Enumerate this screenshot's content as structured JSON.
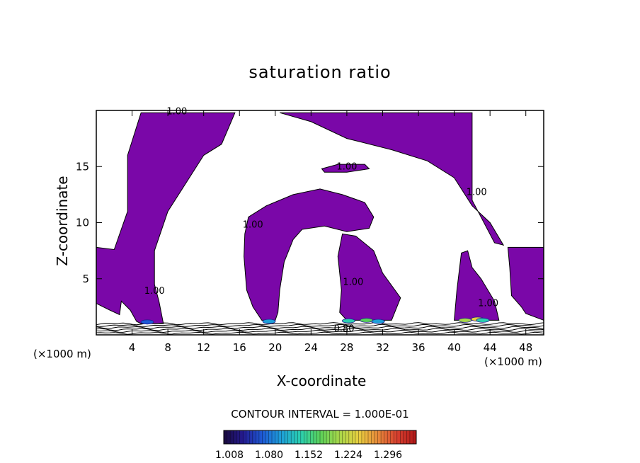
{
  "chart_data": {
    "type": "heatmap",
    "title": "saturation ratio",
    "xlabel": "X-coordinate",
    "ylabel": "Z-coordinate",
    "x_unit_left": "(×1000 m)",
    "x_unit_right": "(×1000 m)",
    "xlim": [
      0,
      50
    ],
    "ylim": [
      0,
      20
    ],
    "x_ticks": [
      4,
      8,
      12,
      16,
      20,
      24,
      28,
      32,
      36,
      40,
      44,
      48
    ],
    "y_ticks": [
      5,
      10,
      15
    ],
    "contour_interval_text": "CONTOUR INTERVAL = 1.000E-01",
    "contour_labels": [
      {
        "text": "1.00",
        "x": 9.0,
        "y": 19.9
      },
      {
        "text": "1.00",
        "x": 28.0,
        "y": 15.0
      },
      {
        "text": "1.00",
        "x": 42.5,
        "y": 12.7
      },
      {
        "text": "1.00",
        "x": 17.5,
        "y": 9.8
      },
      {
        "text": "1.00",
        "x": 28.7,
        "y": 4.7
      },
      {
        "text": "1.00",
        "x": 6.5,
        "y": 3.9
      },
      {
        "text": "1.00",
        "x": 43.8,
        "y": 2.8
      },
      {
        "text": "0.80",
        "x": 27.7,
        "y": 0.55
      }
    ],
    "regions": [
      {
        "name": "left-upper",
        "points": [
          [
            0,
            7.8
          ],
          [
            2,
            7.6
          ],
          [
            3.5,
            11
          ],
          [
            3.5,
            16
          ],
          [
            5,
            19.8
          ],
          [
            15.5,
            19.8
          ],
          [
            14,
            17
          ],
          [
            12,
            16
          ],
          [
            10,
            13.5
          ],
          [
            8,
            11
          ],
          [
            6.5,
            7.5
          ],
          [
            6.5,
            4.5
          ],
          [
            7,
            3
          ],
          [
            7.5,
            1.0
          ],
          [
            5,
            1.0
          ],
          [
            4.5,
            1.2
          ],
          [
            3.8,
            2.2
          ],
          [
            2.8,
            3
          ],
          [
            2.6,
            1.8
          ],
          [
            1.5,
            2.2
          ],
          [
            0,
            2.8
          ]
        ]
      },
      {
        "name": "top-center",
        "points": [
          [
            20.5,
            19.8
          ],
          [
            31,
            19.8
          ],
          [
            42,
            19.8
          ],
          [
            42,
            12
          ],
          [
            44.5,
            8.2
          ],
          [
            45.5,
            8
          ],
          [
            44,
            10
          ],
          [
            42,
            11.5
          ],
          [
            40,
            14
          ],
          [
            37,
            15.5
          ],
          [
            33,
            16.5
          ],
          [
            28,
            17.5
          ],
          [
            24,
            19
          ]
        ]
      },
      {
        "name": "center-tongue",
        "points": [
          [
            25.2,
            14.8
          ],
          [
            27,
            15.2
          ],
          [
            30,
            15.2
          ],
          [
            30.5,
            14.8
          ],
          [
            28,
            14.5
          ],
          [
            25.5,
            14.5
          ]
        ]
      },
      {
        "name": "center-arch",
        "points": [
          [
            17,
            10.5
          ],
          [
            19,
            11.5
          ],
          [
            22,
            12.5
          ],
          [
            25,
            13
          ],
          [
            27.5,
            12.5
          ],
          [
            30,
            11.8
          ],
          [
            31,
            10.5
          ],
          [
            30.5,
            9.5
          ],
          [
            28,
            9.2
          ],
          [
            25.5,
            9.7
          ],
          [
            23,
            9.4
          ],
          [
            22,
            8.5
          ],
          [
            21,
            6.5
          ],
          [
            20.5,
            4
          ],
          [
            20.3,
            2
          ],
          [
            20,
            1.3
          ],
          [
            18.5,
            1.3
          ],
          [
            17.5,
            2.5
          ],
          [
            16.8,
            4
          ],
          [
            16.5,
            7
          ],
          [
            16.6,
            9
          ]
        ]
      },
      {
        "name": "center-right-blob",
        "points": [
          [
            27.5,
            9
          ],
          [
            29,
            8.8
          ],
          [
            31,
            7.5
          ],
          [
            32,
            5.5
          ],
          [
            34,
            3.3
          ],
          [
            33,
            1.3
          ],
          [
            28,
            1.3
          ],
          [
            27.2,
            2
          ],
          [
            27.4,
            4
          ],
          [
            27,
            7
          ]
        ]
      },
      {
        "name": "right-blob",
        "points": [
          [
            40.8,
            7.3
          ],
          [
            41.5,
            7.5
          ],
          [
            42,
            6
          ],
          [
            43,
            5
          ],
          [
            44.5,
            3
          ],
          [
            45,
            1.3
          ],
          [
            40,
            1.3
          ],
          [
            40.3,
            4
          ]
        ]
      },
      {
        "name": "far-right",
        "points": [
          [
            46,
            7.8
          ],
          [
            50,
            7.8
          ],
          [
            50,
            1.3
          ],
          [
            48,
            1.9
          ],
          [
            47.5,
            2.5
          ],
          [
            46.4,
            3.5
          ],
          [
            46.2,
            6
          ]
        ]
      }
    ],
    "colorbar": {
      "ticks": [
        "1.008",
        "1.080",
        "1.152",
        "1.224",
        "1.296"
      ],
      "colors": [
        "#1a0a3c",
        "#241a90",
        "#1e5ad6",
        "#1ea0d8",
        "#2bd0b0",
        "#5ad05a",
        "#a8d84a",
        "#e8d040",
        "#e88a3a",
        "#d84030",
        "#b01818"
      ]
    },
    "colors": {
      "fill": "#7a07a8",
      "line": "#000000"
    }
  }
}
